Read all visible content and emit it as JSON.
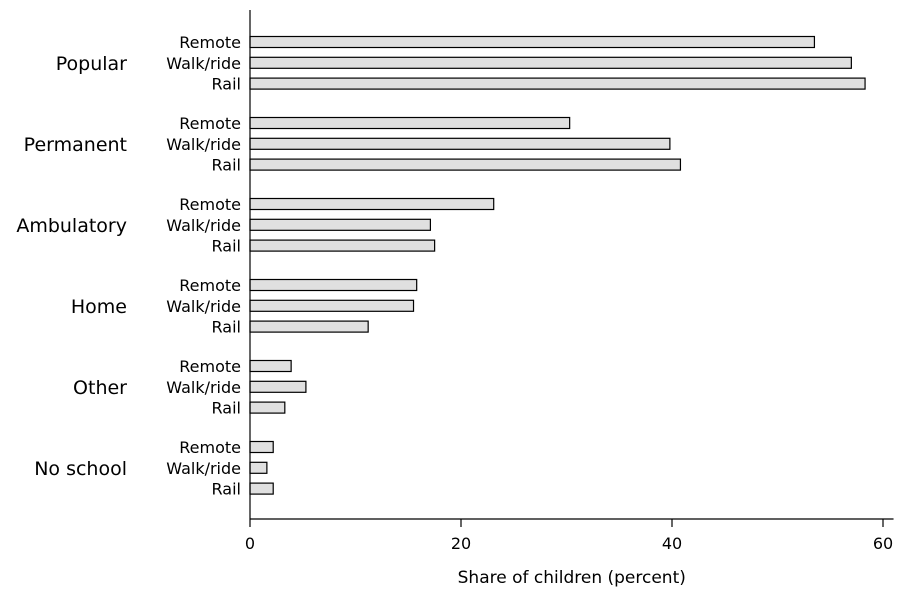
{
  "chart_data": {
    "type": "bar",
    "orientation": "horizontal",
    "xlabel": "Share of children (percent)",
    "ylabel": "",
    "title": "",
    "xlim": [
      0,
      61
    ],
    "xticks": [
      0,
      20,
      40,
      60
    ],
    "bar_color": "#e0e0e0",
    "grid": false,
    "groups": [
      {
        "name": "Popular",
        "bars": [
          {
            "label": "Remote",
            "value": 53.5
          },
          {
            "label": "Walk/ride",
            "value": 57.0
          },
          {
            "label": "Rail",
            "value": 58.3
          }
        ]
      },
      {
        "name": "Permanent",
        "bars": [
          {
            "label": "Remote",
            "value": 30.3
          },
          {
            "label": "Walk/ride",
            "value": 39.8
          },
          {
            "label": "Rail",
            "value": 40.8
          }
        ]
      },
      {
        "name": "Ambulatory",
        "bars": [
          {
            "label": "Remote",
            "value": 23.1
          },
          {
            "label": "Walk/ride",
            "value": 17.1
          },
          {
            "label": "Rail",
            "value": 17.5
          }
        ]
      },
      {
        "name": "Home",
        "bars": [
          {
            "label": "Remote",
            "value": 15.8
          },
          {
            "label": "Walk/ride",
            "value": 15.5
          },
          {
            "label": "Rail",
            "value": 11.2
          }
        ]
      },
      {
        "name": "Other",
        "bars": [
          {
            "label": "Remote",
            "value": 3.9
          },
          {
            "label": "Walk/ride",
            "value": 5.3
          },
          {
            "label": "Rail",
            "value": 3.3
          }
        ]
      },
      {
        "name": "No school",
        "bars": [
          {
            "label": "Remote",
            "value": 2.2
          },
          {
            "label": "Walk/ride",
            "value": 1.6
          },
          {
            "label": "Rail",
            "value": 2.2
          }
        ]
      }
    ]
  }
}
